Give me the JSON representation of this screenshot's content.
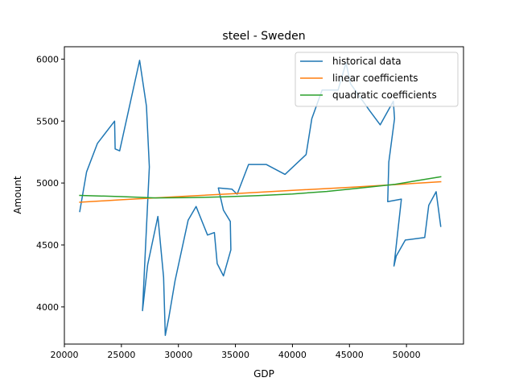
{
  "chart_data": {
    "type": "line",
    "title": "steel - Sweden",
    "xlabel": "GDP",
    "ylabel": "Amount",
    "xlim": [
      20000,
      55000
    ],
    "ylim": [
      3700,
      6100
    ],
    "x_ticks": [
      20000,
      25000,
      30000,
      35000,
      40000,
      45000,
      50000
    ],
    "x_tick_labels": [
      "20000",
      "25000",
      "30000",
      "35000",
      "40000",
      "45000",
      "50000"
    ],
    "y_ticks": [
      4000,
      4500,
      5000,
      5500,
      6000
    ],
    "y_tick_labels": [
      "4000",
      "4500",
      "5000",
      "5500",
      "6000"
    ],
    "grid": false,
    "legend_position": "top-right",
    "series": [
      {
        "name": "historical data",
        "color": "#1f77b4",
        "points": [
          [
            21350,
            4770
          ],
          [
            21950,
            5090
          ],
          [
            22900,
            5320
          ],
          [
            24400,
            5500
          ],
          [
            24450,
            5275
          ],
          [
            24850,
            5260
          ],
          [
            26600,
            5990
          ],
          [
            27200,
            5620
          ],
          [
            27450,
            5130
          ],
          [
            26850,
            3970
          ],
          [
            27300,
            4340
          ],
          [
            28200,
            4730
          ],
          [
            28700,
            4240
          ],
          [
            28850,
            3770
          ],
          [
            29150,
            3910
          ],
          [
            29700,
            4210
          ],
          [
            30850,
            4700
          ],
          [
            31550,
            4810
          ],
          [
            32550,
            4580
          ],
          [
            33150,
            4600
          ],
          [
            33400,
            4350
          ],
          [
            33950,
            4250
          ],
          [
            34600,
            4460
          ],
          [
            34550,
            4690
          ],
          [
            33950,
            4780
          ],
          [
            33500,
            4960
          ],
          [
            34700,
            4950
          ],
          [
            35150,
            4910
          ],
          [
            36150,
            5150
          ],
          [
            37700,
            5150
          ],
          [
            39350,
            5070
          ],
          [
            41200,
            5230
          ],
          [
            41700,
            5520
          ],
          [
            42600,
            5750
          ],
          [
            44000,
            5750
          ],
          [
            44700,
            5970
          ],
          [
            45100,
            5800
          ],
          [
            46800,
            5580
          ],
          [
            47700,
            5470
          ],
          [
            48850,
            5660
          ],
          [
            48950,
            5520
          ],
          [
            48450,
            5170
          ],
          [
            48350,
            4850
          ],
          [
            49550,
            4870
          ],
          [
            48900,
            4330
          ],
          [
            49100,
            4410
          ],
          [
            49900,
            4540
          ],
          [
            51600,
            4560
          ],
          [
            51950,
            4820
          ],
          [
            52600,
            4930
          ],
          [
            53000,
            4650
          ]
        ]
      },
      {
        "name": "linear coefficients",
        "color": "#ff7f0e",
        "points": [
          [
            21350,
            4845
          ],
          [
            25000,
            4865
          ],
          [
            30000,
            4890
          ],
          [
            35000,
            4915
          ],
          [
            40000,
            4940
          ],
          [
            45000,
            4965
          ],
          [
            50000,
            4993
          ],
          [
            53000,
            5010
          ]
        ]
      },
      {
        "name": "quadratic coefficients",
        "color": "#2ca02c",
        "points": [
          [
            21350,
            4900
          ],
          [
            25000,
            4890
          ],
          [
            28000,
            4880
          ],
          [
            31000,
            4882
          ],
          [
            34000,
            4888
          ],
          [
            37000,
            4898
          ],
          [
            40000,
            4912
          ],
          [
            43000,
            4932
          ],
          [
            46000,
            4960
          ],
          [
            49000,
            4990
          ],
          [
            51000,
            5020
          ],
          [
            53000,
            5050
          ]
        ]
      }
    ]
  }
}
